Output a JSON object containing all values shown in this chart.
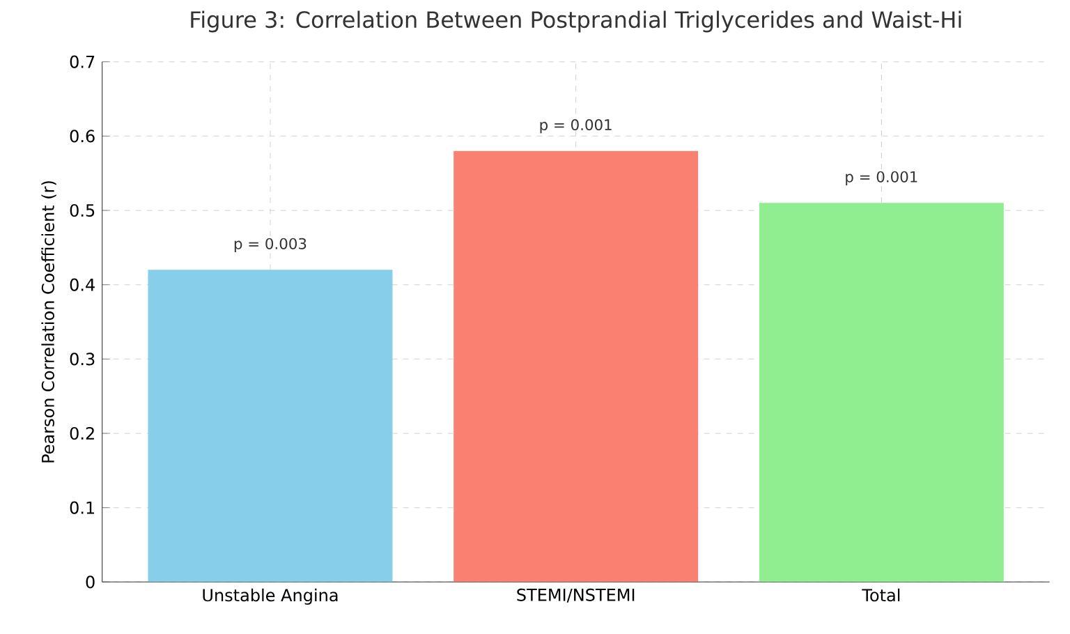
{
  "chart_data": {
    "type": "bar",
    "title": "Figure 3: Correlation Between Postprandial Triglycerides and Waist-Hi",
    "ylabel": "Pearson Correlation Coefficient (r)",
    "categories": [
      "Unstable Angina",
      "STEMI/NSTEMI",
      "Total"
    ],
    "values": [
      0.42,
      0.58,
      0.51
    ],
    "colors": [
      "#87ceeb",
      "#fa8072",
      "#90ee90"
    ],
    "ylim": [
      0,
      0.7
    ],
    "yticks": [
      0,
      0.1,
      0.2,
      0.3,
      0.4,
      0.5,
      0.6,
      0.7
    ],
    "grid": true,
    "annotations": [
      {
        "text": "p = 0.003",
        "x": "Unstable Angina",
        "y": 0.42
      },
      {
        "text": "p = 0.001",
        "x": "STEMI/NSTEMI",
        "y": 0.58
      },
      {
        "text": "p = 0.001",
        "x": "Total",
        "y": 0.51
      }
    ]
  }
}
